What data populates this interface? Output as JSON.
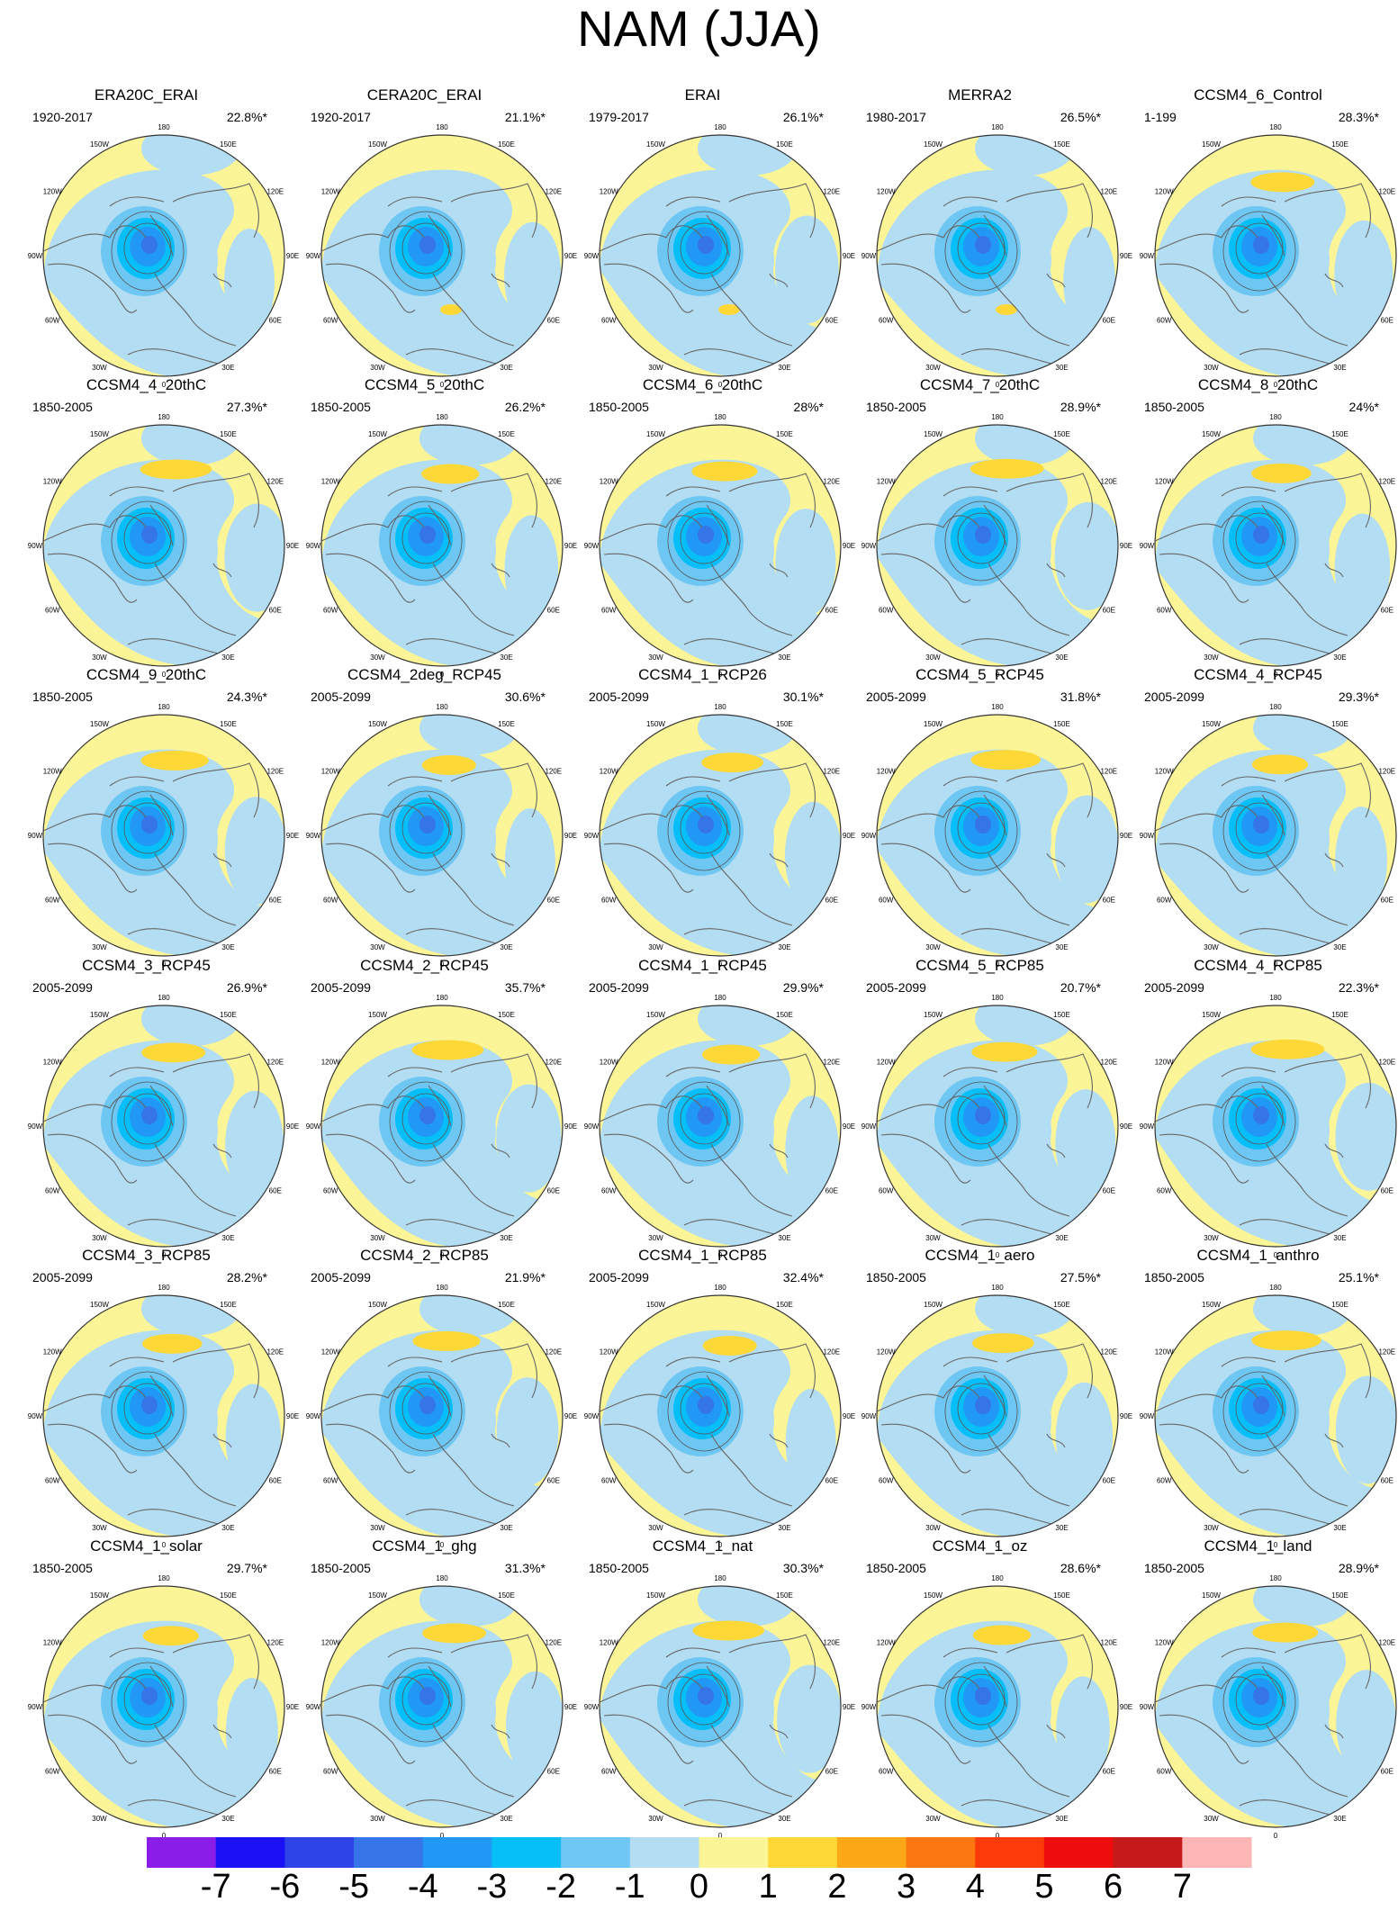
{
  "title": "NAM (JJA)",
  "chart_data": {
    "type": "heatmap",
    "title": "NAM (JJA)",
    "projection": "north polar stereographic",
    "longitude_labels": [
      "180",
      "150E",
      "120E",
      "90E",
      "60E",
      "30E",
      "0",
      "30W",
      "60W",
      "90W",
      "120W",
      "150W"
    ],
    "panels": [
      {
        "name": "ERA20C_ERAI",
        "years": "1920-2017",
        "pct": "22.8%*"
      },
      {
        "name": "CERA20C_ERAI",
        "years": "1920-2017",
        "pct": "21.1%*"
      },
      {
        "name": "ERAI",
        "years": "1979-2017",
        "pct": "26.1%*"
      },
      {
        "name": "MERRA2",
        "years": "1980-2017",
        "pct": "26.5%*"
      },
      {
        "name": "CCSM4_6_Control",
        "years": "1-199",
        "pct": "28.3%*"
      },
      {
        "name": "CCSM4_4_20thC",
        "years": "1850-2005",
        "pct": "27.3%*"
      },
      {
        "name": "CCSM4_5_20thC",
        "years": "1850-2005",
        "pct": "26.2%*"
      },
      {
        "name": "CCSM4_6_20thC",
        "years": "1850-2005",
        "pct": "28%*"
      },
      {
        "name": "CCSM4_7_20thC",
        "years": "1850-2005",
        "pct": "28.9%*"
      },
      {
        "name": "CCSM4_8_20thC",
        "years": "1850-2005",
        "pct": "24%*"
      },
      {
        "name": "CCSM4_9_20thC",
        "years": "1850-2005",
        "pct": "24.3%*"
      },
      {
        "name": "CCSM4_2deg_RCP45",
        "years": "2005-2099",
        "pct": "30.6%*"
      },
      {
        "name": "CCSM4_1_RCP26",
        "years": "2005-2099",
        "pct": "30.1%*"
      },
      {
        "name": "CCSM4_5_RCP45",
        "years": "2005-2099",
        "pct": "31.8%*"
      },
      {
        "name": "CCSM4_4_RCP45",
        "years": "2005-2099",
        "pct": "29.3%*"
      },
      {
        "name": "CCSM4_3_RCP45",
        "years": "2005-2099",
        "pct": "26.9%*"
      },
      {
        "name": "CCSM4_2_RCP45",
        "years": "2005-2099",
        "pct": "35.7%*"
      },
      {
        "name": "CCSM4_1_RCP45",
        "years": "2005-2099",
        "pct": "29.9%*"
      },
      {
        "name": "CCSM4_5_RCP85",
        "years": "2005-2099",
        "pct": "20.7%*"
      },
      {
        "name": "CCSM4_4_RCP85",
        "years": "2005-2099",
        "pct": "22.3%*"
      },
      {
        "name": "CCSM4_3_RCP85",
        "years": "2005-2099",
        "pct": "28.2%*"
      },
      {
        "name": "CCSM4_2_RCP85",
        "years": "2005-2099",
        "pct": "21.9%*"
      },
      {
        "name": "CCSM4_1_RCP85",
        "years": "2005-2099",
        "pct": "32.4%*"
      },
      {
        "name": "CCSM4_1_aero",
        "years": "1850-2005",
        "pct": "27.5%*"
      },
      {
        "name": "CCSM4_1_anthro",
        "years": "1850-2005",
        "pct": "25.1%*"
      },
      {
        "name": "CCSM4_1_solar",
        "years": "1850-2005",
        "pct": "29.7%*"
      },
      {
        "name": "CCSM4_1_ghg",
        "years": "1850-2005",
        "pct": "31.3%*"
      },
      {
        "name": "CCSM4_1_nat",
        "years": "1850-2005",
        "pct": "30.3%*"
      },
      {
        "name": "CCSM4_1_oz",
        "years": "1850-2005",
        "pct": "28.6%*"
      },
      {
        "name": "CCSM4_1_land",
        "years": "1850-2005",
        "pct": "28.9%*"
      }
    ],
    "colorbar": {
      "labels": [
        "-7",
        "-6",
        "-5",
        "-4",
        "-3",
        "-2",
        "-1",
        "0",
        "1",
        "2",
        "3",
        "4",
        "5",
        "6",
        "7"
      ],
      "colors": [
        "#8a1ee8",
        "#1a12f5",
        "#2f44e6",
        "#3575e8",
        "#2198f5",
        "#06bff9",
        "#6ec7f3",
        "#b3ddf2",
        "#fbf597",
        "#fdd836",
        "#fca715",
        "#fd7710",
        "#fd3a0a",
        "#ec0d0c",
        "#c51a1a",
        "#fdb5b5"
      ]
    }
  }
}
